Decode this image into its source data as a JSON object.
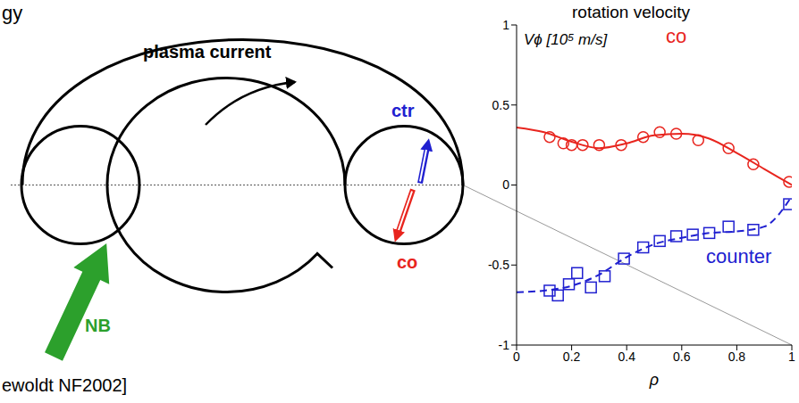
{
  "diagram": {
    "labels": {
      "top_left": "gy",
      "plasma_current": "plasma current",
      "ctr": "ctr",
      "co": "co",
      "nb": "NB",
      "citation": "ewoldt NF2002]"
    }
  },
  "chart_data": {
    "type": "scatter",
    "title": "rotation velocity",
    "ylabel": "Vϕ [10⁵ m/s]",
    "xlabel": "ρ",
    "xlim": [
      0,
      1
    ],
    "ylim": [
      -1,
      1
    ],
    "xticks": [
      0,
      0.2,
      0.4,
      0.6,
      0.8,
      1
    ],
    "yticks": [
      -1,
      -0.5,
      0,
      0.5,
      1
    ],
    "series": [
      {
        "name": "co",
        "color": "#e8251e",
        "marker": "circle",
        "line_style": "solid",
        "x": [
          0.12,
          0.17,
          0.2,
          0.24,
          0.3,
          0.38,
          0.46,
          0.52,
          0.58,
          0.66,
          0.77,
          0.86,
          0.99
        ],
        "values": [
          0.3,
          0.26,
          0.25,
          0.25,
          0.25,
          0.25,
          0.3,
          0.33,
          0.32,
          0.28,
          0.23,
          0.13,
          0.02
        ],
        "fit": {
          "x": [
            0,
            0.1,
            0.2,
            0.3,
            0.4,
            0.5,
            0.6,
            0.7,
            0.8,
            0.9,
            1
          ],
          "values": [
            0.36,
            0.33,
            0.27,
            0.23,
            0.26,
            0.31,
            0.32,
            0.29,
            0.2,
            0.1,
            0.0
          ]
        }
      },
      {
        "name": "counter",
        "color": "#2020d0",
        "marker": "square",
        "line_style": "dashed",
        "x": [
          0.12,
          0.15,
          0.19,
          0.22,
          0.27,
          0.32,
          0.39,
          0.46,
          0.52,
          0.58,
          0.64,
          0.7,
          0.77,
          0.86,
          0.99
        ],
        "values": [
          -0.66,
          -0.69,
          -0.62,
          -0.55,
          -0.64,
          -0.57,
          -0.46,
          -0.39,
          -0.35,
          -0.32,
          -0.31,
          -0.3,
          -0.26,
          -0.28,
          -0.12
        ],
        "fit": {
          "x": [
            0,
            0.1,
            0.2,
            0.3,
            0.4,
            0.5,
            0.6,
            0.7,
            0.8,
            0.9,
            1
          ],
          "values": [
            -0.67,
            -0.66,
            -0.63,
            -0.56,
            -0.45,
            -0.37,
            -0.33,
            -0.3,
            -0.29,
            -0.26,
            -0.07
          ]
        }
      }
    ]
  }
}
